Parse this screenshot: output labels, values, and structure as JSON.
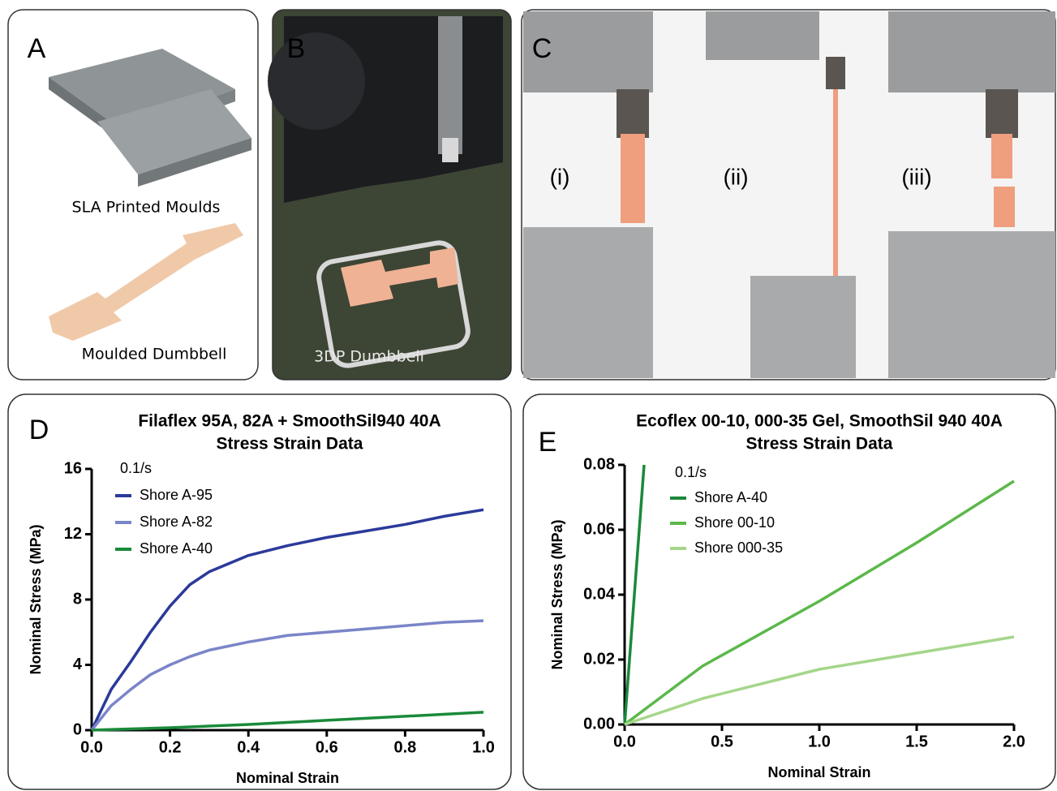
{
  "panels": {
    "a": {
      "label": "A",
      "captions": [
        "SLA Printed Moulds",
        "Moulded Dumbbell"
      ]
    },
    "b": {
      "label": "B",
      "captions": [
        "3DP Dumbbell"
      ]
    },
    "c": {
      "label": "C",
      "captions": [
        "(i)",
        "(ii)",
        "(iii)"
      ]
    },
    "d": {
      "label": "D"
    },
    "e": {
      "label": "E"
    }
  },
  "chart_data": [
    {
      "type": "line",
      "title": "Filaflex 95A, 82A + SmoothSil940 40A",
      "subtitle": "Stress Strain Data",
      "x_label": "Nominal Strain",
      "y_label": "Nominal Stress (MPa)",
      "legend_title": "0.1/s",
      "xlim": [
        0,
        1
      ],
      "ylim": [
        0,
        16
      ],
      "xticks": [
        {
          "value": 0,
          "label": "0.0"
        },
        0.2,
        0.4,
        0.6,
        0.8,
        {
          "value": 1,
          "label": "1.0"
        }
      ],
      "yticks": [
        0,
        4,
        8,
        12,
        16
      ],
      "series": [
        {
          "name": "Shore A-95",
          "color": "#2b3a9a",
          "x": [
            0,
            0.05,
            0.1,
            0.15,
            0.2,
            0.25,
            0.3,
            0.4,
            0.5,
            0.6,
            0.7,
            0.8,
            0.9,
            1
          ],
          "values": [
            0,
            2.5,
            4.2,
            6,
            7.6,
            8.9,
            9.7,
            10.7,
            11.3,
            11.8,
            12.2,
            12.6,
            13.1,
            13.5
          ]
        },
        {
          "name": "Shore A-82",
          "color": "#7a85c8",
          "x": [
            0,
            0.05,
            0.1,
            0.15,
            0.2,
            0.25,
            0.3,
            0.4,
            0.5,
            0.6,
            0.7,
            0.8,
            0.9,
            1
          ],
          "values": [
            0,
            1.5,
            2.5,
            3.4,
            4,
            4.5,
            4.9,
            5.4,
            5.8,
            6,
            6.2,
            6.4,
            6.6,
            6.7
          ]
        },
        {
          "name": "Shore A-40",
          "color": "#1a8a3a",
          "x": [
            0,
            0.2,
            0.4,
            0.6,
            0.8,
            1
          ],
          "values": [
            0,
            0.15,
            0.35,
            0.6,
            0.85,
            1.1
          ]
        }
      ]
    },
    {
      "type": "line",
      "title": "Ecoflex 00-10, 000-35 Gel,  SmoothSil 940 40A",
      "subtitle": "Stress Strain Data",
      "x_label": "Nominal Strain",
      "y_label": "Nominal Stress (MPa)",
      "legend_title": "0.1/s",
      "xlim": [
        0,
        2
      ],
      "ylim": [
        0,
        0.08
      ],
      "xticks": [
        {
          "value": 0,
          "label": "0.0"
        },
        0.5,
        {
          "value": 1,
          "label": "1.0"
        },
        1.5,
        {
          "value": 2,
          "label": "2.0"
        }
      ],
      "yticks": [
        {
          "value": 0,
          "label": "0.00"
        },
        0.02,
        0.04,
        0.06,
        0.08
      ],
      "series": [
        {
          "name": "Shore A-40",
          "color": "#1a8a3a",
          "x": [
            0,
            0.1
          ],
          "values": [
            0,
            0.08
          ]
        },
        {
          "name": "Shore 00-10",
          "color": "#5cb84a",
          "x": [
            0,
            0.4,
            1,
            1.5,
            2
          ],
          "values": [
            0,
            0.018,
            0.038,
            0.056,
            0.075
          ]
        },
        {
          "name": "Shore 000-35",
          "color": "#a5d68a",
          "x": [
            0,
            0.4,
            0.8,
            1,
            1.5,
            2
          ],
          "values": [
            0,
            0.008,
            0.014,
            0.017,
            0.022,
            0.027
          ]
        }
      ]
    }
  ]
}
